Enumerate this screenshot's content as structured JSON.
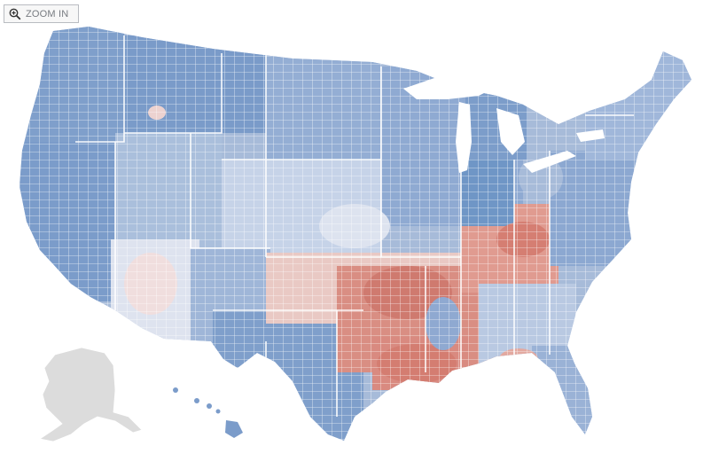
{
  "controls": {
    "zoom_label": "ZOOM IN",
    "zoom_icon": "magnifier-plus-icon"
  },
  "map": {
    "type": "us-county-choropleth",
    "colors": {
      "blue_dark": "#6f96c6",
      "blue_mid": "#9fb6d8",
      "blue_light": "#c9d5e9",
      "blue_pale": "#dde3ef",
      "red_pale": "#f1dada",
      "red_mid": "#e3a9a0",
      "red_dark": "#d17c70",
      "no_data_gray": "#dcdcdc",
      "borders": "#ffffff"
    }
  }
}
